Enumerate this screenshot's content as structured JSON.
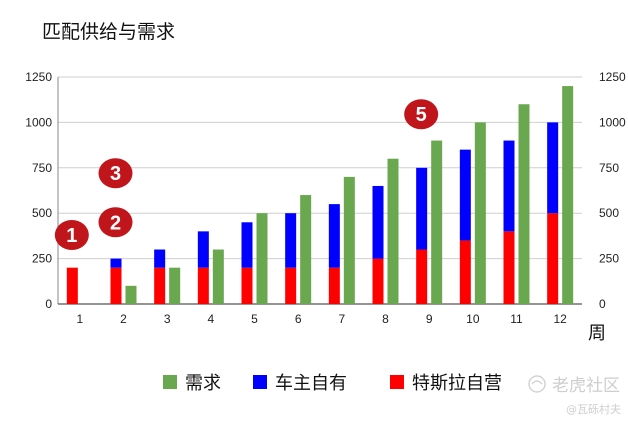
{
  "chart_data": {
    "type": "bar",
    "title": "匹配供给与需求",
    "xlabel": "周",
    "categories": [
      "1",
      "2",
      "3",
      "4",
      "5",
      "6",
      "7",
      "8",
      "9",
      "10",
      "11",
      "12"
    ],
    "ylim": [
      0,
      1250
    ],
    "yticks": [
      "0",
      "250",
      "500",
      "750",
      "1000",
      "1250"
    ],
    "grid": true,
    "legend_position": "bottom",
    "series": [
      {
        "name": "需求",
        "color": "#6aa84f",
        "values": [
          0,
          100,
          200,
          300,
          500,
          600,
          700,
          800,
          900,
          1000,
          1100,
          1200
        ]
      },
      {
        "name": "车主自有",
        "color": "#0000ff",
        "stack": "supply",
        "values": [
          0,
          50,
          100,
          200,
          250,
          300,
          350,
          400,
          450,
          500,
          500,
          500
        ]
      },
      {
        "name": "特斯拉自营",
        "color": "#ff0000",
        "stack": "supply",
        "values": [
          200,
          200,
          200,
          200,
          200,
          200,
          200,
          250,
          300,
          350,
          400,
          500
        ]
      }
    ],
    "legend": [
      "需求",
      "车主自有",
      "特斯拉自营"
    ],
    "annotations": [
      {
        "label": "1",
        "category": "1",
        "value": 380
      },
      {
        "label": "2",
        "category": "2",
        "value": 450
      },
      {
        "label": "3",
        "category": "2",
        "value": 720
      },
      {
        "label": "5",
        "category": "9",
        "value": 1045
      }
    ]
  },
  "watermark": {
    "main": "老虎社区",
    "sub": "@瓦砾村夫"
  },
  "colors": {
    "badge": "#c0151b",
    "grid": "#cfcfcf",
    "axis": "#888888"
  }
}
